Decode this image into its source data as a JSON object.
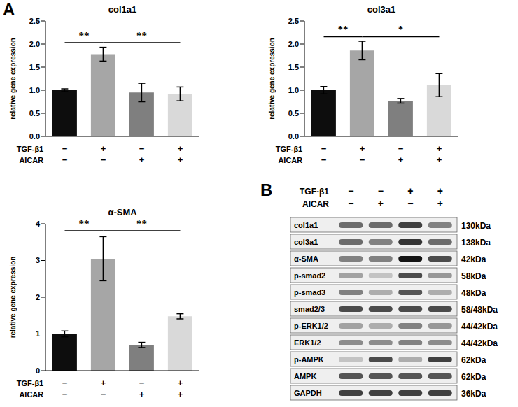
{
  "panel_labels": [
    "A",
    "B"
  ],
  "chart_data": [
    {
      "type": "bar",
      "title": "col1a1",
      "y_label": "relative gene expression",
      "treatments": [
        {
          "label": "TGF-β1",
          "signs": [
            "−",
            "+",
            "−",
            "+"
          ]
        },
        {
          "label": "AICAR",
          "signs": [
            "−",
            "−",
            "+",
            "+"
          ]
        }
      ],
      "values": [
        1.0,
        1.78,
        0.95,
        0.92
      ],
      "errors": [
        0.03,
        0.15,
        0.2,
        0.15
      ],
      "colors": [
        "#0d0d0d",
        "#a6a6a6",
        "#7f7f7f",
        "#d9d9d9"
      ],
      "ylim": [
        0,
        2.5
      ],
      "yticks": [
        {
          "value": 0,
          "label": "0.0"
        },
        0.5,
        {
          "value": 1,
          "label": "1.0"
        },
        1.5,
        {
          "value": 2,
          "label": "2.0"
        },
        2.5
      ],
      "grid": false,
      "significance": [
        {
          "from": 0,
          "to": 1,
          "label": "**"
        },
        {
          "from": 1,
          "to": 3,
          "label": "**"
        }
      ]
    },
    {
      "type": "bar",
      "title": "col3a1",
      "y_label": "relative gene expression",
      "treatments": [
        {
          "label": "TGF-β1",
          "signs": [
            "−",
            "+",
            "−",
            "+"
          ]
        },
        {
          "label": "AICAR",
          "signs": [
            "−",
            "−",
            "+",
            "+"
          ]
        }
      ],
      "values": [
        1.0,
        1.86,
        0.77,
        1.11
      ],
      "errors": [
        0.08,
        0.2,
        0.05,
        0.25
      ],
      "colors": [
        "#0d0d0d",
        "#a6a6a6",
        "#7f7f7f",
        "#d9d9d9"
      ],
      "ylim": [
        0,
        2.5
      ],
      "yticks": [
        {
          "value": 0,
          "label": "0.0"
        },
        0.5,
        {
          "value": 1,
          "label": "1.0"
        },
        1.5,
        {
          "value": 2,
          "label": "2.0"
        },
        2.5
      ],
      "grid": false,
      "significance": [
        {
          "from": 0,
          "to": 1,
          "label": "**"
        },
        {
          "from": 1,
          "to": 3,
          "label": "*"
        }
      ]
    },
    {
      "type": "bar",
      "title": "α-SMA",
      "y_label": "relative gene expression",
      "treatments": [
        {
          "label": "TGF-β1",
          "signs": [
            "−",
            "+",
            "−",
            "+"
          ]
        },
        {
          "label": "AICAR",
          "signs": [
            "−",
            "−",
            "+",
            "+"
          ]
        }
      ],
      "values": [
        1.0,
        3.05,
        0.7,
        1.48
      ],
      "errors": [
        0.08,
        0.6,
        0.07,
        0.07
      ],
      "colors": [
        "#0d0d0d",
        "#a6a6a6",
        "#7f7f7f",
        "#d9d9d9"
      ],
      "ylim": [
        0,
        4
      ],
      "yticks": [
        0,
        1,
        2,
        3,
        4
      ],
      "grid": false,
      "significance": [
        {
          "from": 0,
          "to": 1,
          "label": "**"
        },
        {
          "from": 1,
          "to": 3,
          "label": "**"
        }
      ]
    }
  ],
  "blot": {
    "treatments": [
      {
        "label": "TGF-β1",
        "signs": [
          "−",
          "−",
          "+",
          "+"
        ]
      },
      {
        "label": "AICAR",
        "signs": [
          "−",
          "+",
          "−",
          "+"
        ]
      }
    ],
    "rows": [
      {
        "label": "col1a1",
        "size": "130kDa",
        "intensity": [
          0.6,
          0.6,
          0.8,
          0.5
        ]
      },
      {
        "label": "col3a1",
        "size": "138kDa",
        "intensity": [
          0.6,
          0.5,
          0.85,
          0.6
        ]
      },
      {
        "label": "α-SMA",
        "size": "42kDa",
        "intensity": [
          0.5,
          0.5,
          1.0,
          0.75
        ]
      },
      {
        "label": "p-smad2",
        "size": "58kDa",
        "intensity": [
          0.35,
          0.2,
          0.75,
          0.4
        ]
      },
      {
        "label": "p-smad3",
        "size": "48kDa",
        "intensity": [
          0.5,
          0.3,
          0.7,
          0.3
        ]
      },
      {
        "label": "smad2/3",
        "size": "58/48kDa",
        "intensity": [
          0.75,
          0.75,
          0.75,
          0.75
        ]
      },
      {
        "label": "p-ERK1/2",
        "size": "44/42kDa",
        "intensity": [
          0.35,
          0.3,
          0.5,
          0.4
        ]
      },
      {
        "label": "ERK1/2",
        "size": "44/42kDa",
        "intensity": [
          0.45,
          0.45,
          0.5,
          0.45
        ]
      },
      {
        "label": "p-AMPK",
        "size": "62kDa",
        "intensity": [
          0.2,
          0.75,
          0.3,
          0.8
        ]
      },
      {
        "label": "AMPK",
        "size": "62kDa",
        "intensity": [
          0.7,
          0.7,
          0.7,
          0.7
        ]
      },
      {
        "label": "GAPDH",
        "size": "36kDa",
        "intensity": [
          0.8,
          0.8,
          0.8,
          0.8
        ]
      }
    ]
  }
}
